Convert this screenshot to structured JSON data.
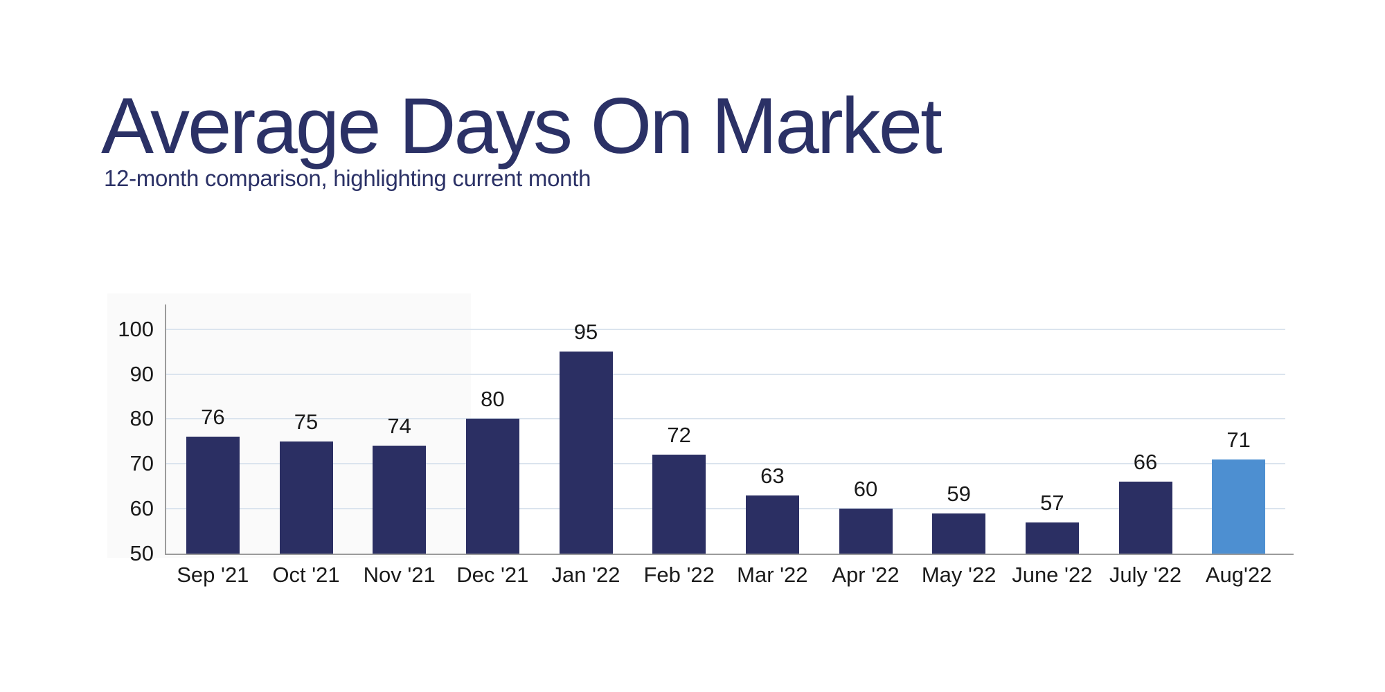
{
  "header": {
    "title": "Average Days On Market",
    "subtitle": "12-month comparison, highlighting current month"
  },
  "chart_data": {
    "type": "bar",
    "title": "Average Days On Market",
    "subtitle": "12-month comparison, highlighting current month",
    "categories": [
      "Sep '21",
      "Oct '21",
      "Nov '21",
      "Dec '21",
      "Jan '22",
      "Feb '22",
      "Mar '22",
      "Apr '22",
      "May '22",
      "June '22",
      "July '22",
      "Aug'22"
    ],
    "values": [
      76,
      75,
      74,
      80,
      95,
      72,
      63,
      60,
      59,
      57,
      66,
      71
    ],
    "highlight_index": 11,
    "xlabel": "",
    "ylabel": "",
    "yticks": [
      50,
      60,
      70,
      80,
      90,
      100
    ],
    "ylim": [
      50,
      105.5
    ],
    "grid": true,
    "value_labels_shown": true,
    "legend": "none",
    "colors": {
      "bar": "#2b2f63",
      "highlight_bar": "#4d8fd1",
      "title_text": "#2b3166",
      "tick_text": "#1a1a1a",
      "gridline": "#dbe4ee",
      "axis_line": "#9b9b9b",
      "background": "#ffffff"
    }
  }
}
